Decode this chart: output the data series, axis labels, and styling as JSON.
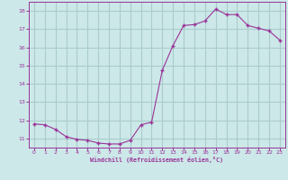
{
  "x": [
    0,
    1,
    2,
    3,
    4,
    5,
    6,
    7,
    8,
    9,
    10,
    11,
    12,
    13,
    14,
    15,
    16,
    17,
    18,
    19,
    20,
    21,
    22,
    23
  ],
  "y": [
    11.8,
    11.75,
    11.5,
    11.1,
    10.95,
    10.9,
    10.75,
    10.7,
    10.7,
    10.9,
    11.75,
    11.9,
    14.75,
    16.1,
    17.2,
    17.25,
    17.45,
    18.1,
    17.8,
    17.8,
    17.2,
    17.05,
    16.9,
    16.4
  ],
  "line_color": "#993399",
  "marker_color": "#993399",
  "bg_color": "#cce8e8",
  "grid_color": "#aacccc",
  "xlabel": "Windchill (Refroidissement éolien,°C)",
  "xlabel_color": "#993399",
  "tick_color": "#993399",
  "spine_color": "#993399",
  "ylim": [
    10.5,
    18.5
  ],
  "xlim": [
    -0.5,
    23.5
  ],
  "yticks": [
    11,
    12,
    13,
    14,
    15,
    16,
    17,
    18
  ],
  "xticks": [
    0,
    1,
    2,
    3,
    4,
    5,
    6,
    7,
    8,
    9,
    10,
    11,
    12,
    13,
    14,
    15,
    16,
    17,
    18,
    19,
    20,
    21,
    22,
    23
  ]
}
